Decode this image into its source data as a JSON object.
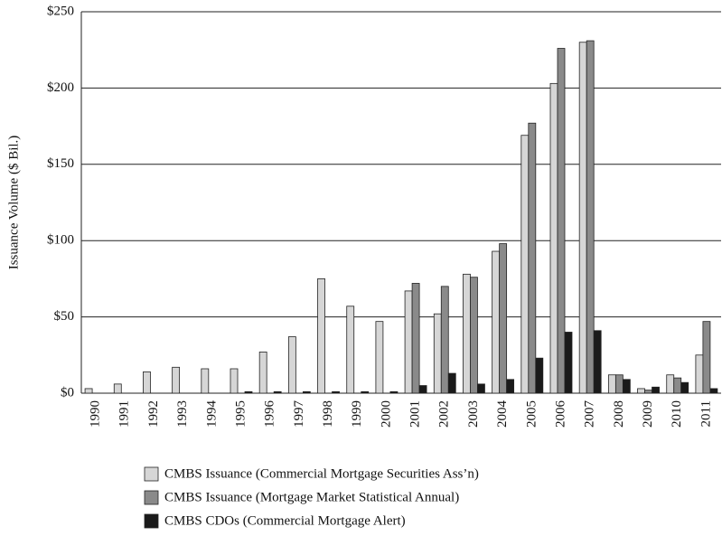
{
  "chart_data": {
    "type": "bar",
    "y_label": "Issuance Volume ($ Bil.)",
    "categories": [
      "1990",
      "1991",
      "1992",
      "1993",
      "1994",
      "1995",
      "1996",
      "1997",
      "1998",
      "1999",
      "2000",
      "2001",
      "2002",
      "2003",
      "2004",
      "2005",
      "2006",
      "2007",
      "2008",
      "2009",
      "2010",
      "2011"
    ],
    "series": [
      {
        "name": "CMBS Issuance (Commercial Mortgage Securities Ass’n)",
        "color": "#d6d6d6",
        "values": [
          3,
          6,
          14,
          17,
          16,
          16,
          27,
          37,
          75,
          57,
          47,
          67,
          52,
          78,
          93,
          169,
          203,
          230,
          12,
          3,
          12,
          25
        ]
      },
      {
        "name": "CMBS Issuance (Mortgage Market Statistical Annual)",
        "color": "#8a8a8a",
        "values": [
          null,
          null,
          null,
          null,
          null,
          null,
          null,
          null,
          null,
          null,
          null,
          72,
          70,
          76,
          98,
          177,
          226,
          231,
          12,
          2,
          10,
          47
        ]
      },
      {
        "name": "CMBS CDOs (Commercial Mortgage Alert)",
        "color": "#1a1a1a",
        "values": [
          null,
          null,
          null,
          null,
          null,
          1,
          1,
          1,
          1,
          1,
          1,
          5,
          13,
          6,
          9,
          23,
          40,
          41,
          9,
          4,
          7,
          3
        ]
      }
    ],
    "ylim": [
      0,
      250
    ],
    "yticks": [
      {
        "value": 0,
        "label": "$0"
      },
      {
        "value": 50,
        "label": "$50"
      },
      {
        "value": 100,
        "label": "$100"
      },
      {
        "value": 150,
        "label": "$150"
      },
      {
        "value": 200,
        "label": "$200"
      },
      {
        "value": 250,
        "label": "$250"
      }
    ],
    "grid": true
  }
}
